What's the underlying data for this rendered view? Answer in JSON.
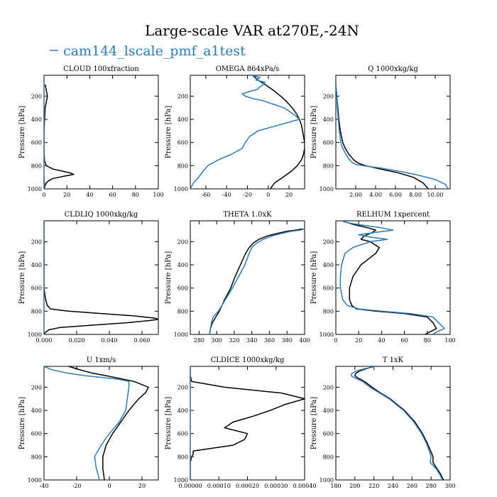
{
  "figure": {
    "title": "Large-scale VAR at270E,-24N",
    "legend": {
      "label": "cam144_lscale_pmf_a1test",
      "color": "#2b7bb9"
    },
    "series_colors": {
      "reference": "#000000",
      "cam144_lscale_pmf_a1test": "#2b7bb9"
    }
  },
  "chart_data": [
    {
      "type": "line",
      "title": "CLOUD  100xfraction",
      "ylabel": "Pressure [hPa]",
      "xlim": [
        0,
        100
      ],
      "ylim": [
        1000,
        20
      ],
      "y_inverted": true,
      "xticks": [
        0,
        20,
        40,
        60,
        80,
        100
      ],
      "xtick_labels": [
        "0",
        "20",
        "40",
        "60",
        "80",
        "100"
      ],
      "yticks": [
        200,
        400,
        600,
        800,
        1000
      ],
      "ytick_labels": [
        "200",
        "400",
        "600",
        "800",
        "1000"
      ],
      "series": [
        {
          "color": "#000000",
          "p": [
            100,
            150,
            200,
            250,
            300,
            400,
            500,
            600,
            700,
            760,
            800,
            830,
            860,
            875,
            890,
            910,
            930,
            950,
            970,
            990,
            1000
          ],
          "x": [
            1,
            2,
            3,
            2,
            1,
            0.5,
            0,
            0,
            0,
            0.5,
            2,
            8,
            22,
            26,
            18,
            8,
            4,
            2,
            1,
            0.5,
            0
          ]
        },
        {
          "name": "cam144_lscale_pmf_a1test",
          "color": "#2b7bb9",
          "p": [
            100,
            300,
            600,
            900,
            950,
            1000
          ],
          "x": [
            0,
            0,
            0,
            0,
            0.5,
            0
          ]
        }
      ]
    },
    {
      "type": "line",
      "title": "OMEGA  864xPa/s",
      "ylabel": "Pressure [hPa]",
      "xlim": [
        -75,
        35
      ],
      "ylim": [
        1000,
        20
      ],
      "y_inverted": true,
      "xticks": [
        -60,
        -40,
        -20,
        0,
        20
      ],
      "xtick_labels": [
        "-60",
        "-40",
        "-20",
        "0",
        "20"
      ],
      "yticks": [
        200,
        400,
        600,
        800,
        1000
      ],
      "ytick_labels": [
        "200",
        "400",
        "600",
        "800",
        "1000"
      ],
      "series": [
        {
          "color": "#000000",
          "p": [
            20,
            60,
            100,
            150,
            200,
            250,
            300,
            350,
            400,
            450,
            500,
            550,
            600,
            650,
            700,
            750,
            800,
            850,
            900,
            950,
            1000
          ],
          "x": [
            -15,
            -10,
            -3,
            5,
            12,
            18,
            23,
            27,
            30,
            32,
            33,
            34,
            35,
            35,
            34,
            32,
            28,
            22,
            14,
            6,
            2
          ]
        },
        {
          "name": "cam144_lscale_pmf_a1test",
          "color": "#2b7bb9",
          "p": [
            20,
            40,
            60,
            80,
            100,
            120,
            140,
            160,
            180,
            200,
            220,
            240,
            300,
            360,
            400,
            450,
            500,
            550,
            600,
            650,
            700,
            750,
            800,
            850,
            900,
            950,
            1000
          ],
          "x": [
            -15,
            -8,
            -12,
            -3,
            -5,
            -8,
            -10,
            -18,
            -25,
            -22,
            -15,
            -5,
            15,
            25,
            30,
            10,
            -10,
            -18,
            -22,
            -25,
            -35,
            -48,
            -58,
            -63,
            -67,
            -72,
            -75
          ]
        }
      ]
    },
    {
      "type": "line",
      "title": "Q  1000xkg/kg",
      "ylabel": "Pressure [hPa]",
      "xlim": [
        0,
        11.5
      ],
      "ylim": [
        1000,
        20
      ],
      "y_inverted": true,
      "xticks": [
        2,
        4,
        6,
        8,
        10
      ],
      "xtick_labels": [
        "2.00",
        "4.00",
        "6.00",
        "8.00",
        "10.00"
      ],
      "yticks": [
        200,
        400,
        600,
        800,
        1000
      ],
      "ytick_labels": [
        "200",
        "400",
        "600",
        "800",
        "1000"
      ],
      "series": [
        {
          "color": "#000000",
          "p": [
            100,
            200,
            300,
            400,
            500,
            600,
            650,
            700,
            750,
            780,
            800,
            830,
            860,
            900,
            950,
            1000
          ],
          "x": [
            0,
            0.1,
            0.2,
            0.3,
            0.45,
            0.7,
            0.95,
            1.3,
            1.8,
            2.3,
            3,
            4.5,
            6.2,
            7.8,
            8.8,
            9.3
          ]
        },
        {
          "name": "cam144_lscale_pmf_a1test",
          "color": "#2b7bb9",
          "p": [
            100,
            200,
            300,
            400,
            500,
            600,
            650,
            700,
            740,
            770,
            790,
            800,
            820,
            850,
            880,
            920,
            960,
            1000
          ],
          "x": [
            0,
            0.1,
            0.15,
            0.25,
            0.35,
            0.5,
            0.7,
            1.0,
            1.3,
            1.6,
            2.0,
            2.7,
            4.5,
            6.5,
            8.2,
            10,
            11,
            11.3
          ]
        }
      ]
    },
    {
      "type": "line",
      "title": "CLDLIQ  1000xkg/kg",
      "ylabel": "Pressure [hPa]",
      "xlim": [
        0,
        0.07
      ],
      "ylim": [
        1000,
        20
      ],
      "y_inverted": true,
      "xticks": [
        0,
        0.02,
        0.04,
        0.06
      ],
      "xtick_labels": [
        "0.000",
        "0.020",
        "0.040",
        "0.060"
      ],
      "yticks": [
        200,
        400,
        600,
        800,
        1000
      ],
      "ytick_labels": [
        "200",
        "400",
        "600",
        "800",
        "1000"
      ],
      "series": [
        {
          "color": "#000000",
          "p": [
            20,
            300,
            500,
            600,
            650,
            700,
            750,
            780,
            800,
            820,
            840,
            860,
            870,
            880,
            900,
            920,
            940,
            960,
            980,
            1000
          ],
          "x": [
            0,
            0,
            0,
            0,
            0.0005,
            0.001,
            0.002,
            0.004,
            0.015,
            0.035,
            0.055,
            0.068,
            0.07,
            0.065,
            0.05,
            0.03,
            0.01,
            0.003,
            0.001,
            0
          ]
        },
        {
          "name": "cam144_lscale_pmf_a1test",
          "color": "#2b7bb9",
          "p": [
            20,
            500,
            1000
          ],
          "x": [
            0,
            0,
            0
          ]
        }
      ]
    },
    {
      "type": "line",
      "title": "THETA  1.0xK",
      "ylabel": "Pressure [hPa]",
      "xlim": [
        270,
        400
      ],
      "ylim": [
        1000,
        20
      ],
      "y_inverted": true,
      "xticks": [
        280,
        300,
        320,
        340,
        360,
        380,
        400
      ],
      "xtick_labels": [
        "280",
        "300",
        "320",
        "340",
        "360",
        "380",
        "400"
      ],
      "yticks": [
        200,
        400,
        600,
        800,
        1000
      ],
      "ytick_labels": [
        "200",
        "400",
        "600",
        "800",
        "1000"
      ],
      "series": [
        {
          "color": "#000000",
          "p": [
            90,
            100,
            110,
            130,
            150,
            180,
            210,
            250,
            300,
            400,
            500,
            600,
            700,
            800,
            850,
            900,
            950,
            1000
          ],
          "x": [
            398,
            390,
            380,
            368,
            358,
            348,
            342,
            337,
            333,
            327,
            321,
            316,
            309,
            303,
            299,
            295,
            293,
            292
          ]
        },
        {
          "name": "cam144_lscale_pmf_a1test",
          "color": "#2b7bb9",
          "p": [
            90,
            100,
            110,
            130,
            150,
            180,
            210,
            250,
            300,
            400,
            500,
            600,
            700,
            800,
            850,
            900,
            950,
            1000
          ],
          "x": [
            400,
            395,
            385,
            373,
            363,
            353,
            346,
            340,
            337,
            332,
            325,
            318,
            310,
            302,
            296,
            294,
            293,
            292
          ]
        }
      ]
    },
    {
      "type": "line",
      "title": "RELHUM  1xpercent",
      "ylabel": "Pressure [hPa]",
      "xlim": [
        0,
        100
      ],
      "ylim": [
        1000,
        20
      ],
      "y_inverted": true,
      "xticks": [
        0,
        20,
        40,
        60,
        80,
        100
      ],
      "xtick_labels": [
        "0",
        "20",
        "40",
        "60",
        "80",
        "100"
      ],
      "yticks": [
        200,
        400,
        600,
        800,
        1000
      ],
      "ytick_labels": [
        "200",
        "400",
        "600",
        "800",
        "1000"
      ],
      "series": [
        {
          "color": "#000000",
          "p": [
            20,
            50,
            80,
            100,
            120,
            150,
            180,
            200,
            250,
            300,
            400,
            500,
            600,
            700,
            750,
            780,
            800,
            820,
            850,
            900,
            950,
            980,
            1000
          ],
          "x": [
            5,
            15,
            28,
            35,
            32,
            25,
            22,
            30,
            38,
            35,
            22,
            15,
            12,
            12,
            14,
            18,
            35,
            60,
            80,
            85,
            88,
            82,
            78
          ]
        },
        {
          "name": "cam144_lscale_pmf_a1test",
          "color": "#2b7bb9",
          "p": [
            20,
            40,
            60,
            80,
            100,
            120,
            140,
            160,
            180,
            200,
            250,
            300,
            400,
            500,
            600,
            700,
            750,
            780,
            800,
            820,
            850,
            900,
            950,
            980,
            1000
          ],
          "x": [
            5,
            12,
            25,
            40,
            50,
            35,
            20,
            30,
            45,
            30,
            15,
            8,
            5,
            4,
            4,
            6,
            10,
            20,
            40,
            65,
            85,
            90,
            95,
            88,
            85
          ]
        }
      ]
    },
    {
      "type": "line",
      "title": "U  1xm/s",
      "ylabel": "Pressure [hPa]",
      "xlim": [
        -40,
        30
      ],
      "ylim": [
        1000,
        20
      ],
      "y_inverted": true,
      "xticks": [
        -40,
        -20,
        0,
        20
      ],
      "xtick_labels": [
        "-40",
        "-20",
        "0",
        "20"
      ],
      "yticks": [
        200,
        400,
        600,
        800,
        1000
      ],
      "ytick_labels": [
        "200",
        "400",
        "600",
        "800",
        "1000"
      ],
      "series": [
        {
          "color": "#000000",
          "p": [
            20,
            50,
            80,
            100,
            150,
            200,
            250,
            300,
            400,
            500,
            600,
            700,
            800,
            900,
            1000
          ],
          "x": [
            -25,
            -18,
            -10,
            -2,
            15,
            24,
            22,
            18,
            12,
            7,
            2,
            -2,
            -4,
            -4,
            -3
          ]
        },
        {
          "name": "cam144_lscale_pmf_a1test",
          "color": "#2b7bb9",
          "p": [
            20,
            50,
            80,
            100,
            130,
            150,
            200,
            300,
            400,
            500,
            600,
            700,
            800,
            900,
            1000
          ],
          "x": [
            -40,
            -35,
            -25,
            -15,
            5,
            12,
            12,
            11,
            10,
            6,
            0,
            -5,
            -9,
            -8,
            -6
          ]
        }
      ]
    },
    {
      "type": "line",
      "title": "CLDICE  1000xkg/kg",
      "ylabel": "Pressure [hPa]",
      "xlim": [
        0,
        0.0004
      ],
      "ylim": [
        1000,
        20
      ],
      "y_inverted": true,
      "xticks": [
        0,
        0.0001,
        0.0002,
        0.0003,
        0.0004
      ],
      "xtick_labels": [
        "0.00000",
        "0.00010",
        "0.00020",
        "0.00030",
        "0.00040"
      ],
      "yticks": [
        200,
        400,
        600,
        800,
        1000
      ],
      "ytick_labels": [
        "200",
        "400",
        "600",
        "800",
        "1000"
      ],
      "series": [
        {
          "color": "#000000",
          "p": [
            20,
            100,
            150,
            200,
            250,
            300,
            350,
            400,
            450,
            500,
            550,
            600,
            650,
            700,
            750,
            780,
            800,
            850,
            900,
            1000
          ],
          "x": [
            0,
            0,
            5e-06,
            0.00012,
            0.00032,
            0.0004,
            0.00033,
            0.00028,
            0.00022,
            0.00015,
            0.00012,
            0.0002,
            0.00019,
            0.00015,
            1e-05,
            1e-05,
            5e-06,
            0,
            0,
            0
          ]
        },
        {
          "name": "cam144_lscale_pmf_a1test",
          "color": "#2b7bb9",
          "p": [
            20,
            500,
            1000
          ],
          "x": [
            0,
            0,
            0
          ]
        }
      ]
    },
    {
      "type": "line",
      "title": "T  1xK",
      "ylabel": "Pressure [hPa]",
      "xlim": [
        180,
        300
      ],
      "ylim": [
        1000,
        20
      ],
      "y_inverted": true,
      "xticks": [
        180,
        200,
        220,
        240,
        260,
        280,
        300
      ],
      "xtick_labels": [
        "180",
        "200",
        "220",
        "240",
        "260",
        "280",
        "300"
      ],
      "yticks": [
        200,
        400,
        600,
        800,
        1000
      ],
      "ytick_labels": [
        "200",
        "400",
        "600",
        "800",
        "1000"
      ],
      "series": [
        {
          "color": "#000000",
          "p": [
            20,
            40,
            60,
            80,
            100,
            120,
            150,
            200,
            250,
            300,
            400,
            500,
            600,
            700,
            800,
            850,
            900,
            950,
            1000
          ],
          "x": [
            220,
            212,
            205,
            201,
            200,
            203,
            210,
            218,
            227,
            237,
            252,
            263,
            271,
            277,
            282,
            282,
            286,
            290,
            293
          ]
        },
        {
          "name": "cam144_lscale_pmf_a1test",
          "color": "#2b7bb9",
          "p": [
            20,
            40,
            60,
            80,
            100,
            120,
            150,
            200,
            250,
            300,
            400,
            500,
            600,
            700,
            800,
            850,
            900,
            950,
            1000
          ],
          "x": [
            222,
            210,
            202,
            197,
            196,
            200,
            208,
            216,
            226,
            236,
            251,
            262,
            270,
            276,
            280,
            279,
            285,
            289,
            292
          ]
        }
      ]
    }
  ]
}
